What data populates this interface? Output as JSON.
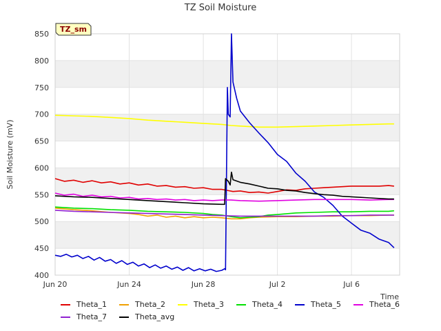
{
  "chart_data": {
    "type": "line",
    "title": "TZ Soil Moisture",
    "xlabel": "Time",
    "ylabel": "Soil Moisture (mV)",
    "site_label": "TZ_sm",
    "ylim": [
      400,
      850
    ],
    "xlim": [
      0,
      18.6
    ],
    "yticks": [
      400,
      450,
      500,
      550,
      600,
      650,
      700,
      750,
      800,
      850
    ],
    "xticks": [
      {
        "day": 0,
        "label": "Jun 20"
      },
      {
        "day": 4,
        "label": "Jun 24"
      },
      {
        "day": 8,
        "label": "Jun 28"
      },
      {
        "day": 12,
        "label": "Jul 2"
      },
      {
        "day": 16,
        "label": "Jul 6"
      }
    ],
    "series": [
      {
        "name": "Theta_1",
        "color": "#e00000",
        "points": [
          [
            0,
            580
          ],
          [
            0.5,
            575
          ],
          [
            1,
            577
          ],
          [
            1.5,
            573
          ],
          [
            2,
            576
          ],
          [
            2.5,
            572
          ],
          [
            3,
            574
          ],
          [
            3.5,
            570
          ],
          [
            4,
            572
          ],
          [
            4.5,
            568
          ],
          [
            5,
            570
          ],
          [
            5.5,
            566
          ],
          [
            6,
            567
          ],
          [
            6.5,
            564
          ],
          [
            7,
            565
          ],
          [
            7.5,
            562
          ],
          [
            8,
            563
          ],
          [
            8.5,
            560
          ],
          [
            9,
            560
          ],
          [
            9.3,
            558
          ],
          [
            9.6,
            556
          ],
          [
            10,
            557
          ],
          [
            10.5,
            554
          ],
          [
            11,
            555
          ],
          [
            11.5,
            553
          ],
          [
            12,
            556
          ],
          [
            12.5,
            559
          ],
          [
            13,
            558
          ],
          [
            13.5,
            561
          ],
          [
            14,
            562
          ],
          [
            14.5,
            563
          ],
          [
            15,
            564
          ],
          [
            15.5,
            565
          ],
          [
            16,
            566
          ],
          [
            16.5,
            566
          ],
          [
            17,
            566
          ],
          [
            17.5,
            566
          ],
          [
            18,
            567
          ],
          [
            18.3,
            566
          ]
        ]
      },
      {
        "name": "Theta_2",
        "color": "#f0a000",
        "points": [
          [
            0,
            525
          ],
          [
            1,
            522
          ],
          [
            2,
            520
          ],
          [
            3,
            517
          ],
          [
            4,
            515
          ],
          [
            4.5,
            513
          ],
          [
            5,
            510
          ],
          [
            5.5,
            512
          ],
          [
            6,
            508
          ],
          [
            6.5,
            510
          ],
          [
            7,
            507
          ],
          [
            7.5,
            509
          ],
          [
            8,
            507
          ],
          [
            8.5,
            508
          ],
          [
            9,
            507
          ],
          [
            9.5,
            505
          ],
          [
            10,
            505
          ],
          [
            10.5,
            507
          ],
          [
            11,
            508
          ],
          [
            12,
            509
          ],
          [
            13,
            509
          ],
          [
            14,
            510
          ],
          [
            15,
            510
          ],
          [
            16,
            511
          ],
          [
            17,
            511
          ],
          [
            18,
            512
          ],
          [
            18.3,
            512
          ]
        ]
      },
      {
        "name": "Theta_3",
        "color": "#ffff00",
        "points": [
          [
            0,
            698
          ],
          [
            1,
            697
          ],
          [
            2,
            696
          ],
          [
            3,
            694
          ],
          [
            4,
            692
          ],
          [
            5,
            689
          ],
          [
            6,
            687
          ],
          [
            7,
            685
          ],
          [
            8,
            683
          ],
          [
            9,
            681
          ],
          [
            9.5,
            679
          ],
          [
            10,
            678
          ],
          [
            11,
            676
          ],
          [
            12,
            676
          ],
          [
            13,
            677
          ],
          [
            14,
            678
          ],
          [
            15,
            679
          ],
          [
            16,
            680
          ],
          [
            17,
            681
          ],
          [
            18,
            682
          ],
          [
            18.3,
            682
          ]
        ]
      },
      {
        "name": "Theta_4",
        "color": "#00e000",
        "points": [
          [
            0,
            527
          ],
          [
            1,
            525
          ],
          [
            2,
            524
          ],
          [
            3,
            522
          ],
          [
            4,
            521
          ],
          [
            5,
            519
          ],
          [
            6,
            518
          ],
          [
            7,
            517
          ],
          [
            8,
            515
          ],
          [
            8.5,
            513
          ],
          [
            9,
            512
          ],
          [
            9.5,
            509
          ],
          [
            10,
            507
          ],
          [
            10.5,
            508
          ],
          [
            11,
            509
          ],
          [
            11.5,
            512
          ],
          [
            12,
            513
          ],
          [
            13,
            516
          ],
          [
            14,
            517
          ],
          [
            15,
            518
          ],
          [
            16,
            518
          ],
          [
            17,
            519
          ],
          [
            18,
            519
          ],
          [
            18.3,
            520
          ]
        ]
      },
      {
        "name": "Theta_5",
        "color": "#0000cc",
        "points": [
          [
            0,
            437
          ],
          [
            0.3,
            435
          ],
          [
            0.6,
            439
          ],
          [
            0.9,
            434
          ],
          [
            1.2,
            437
          ],
          [
            1.5,
            431
          ],
          [
            1.8,
            435
          ],
          [
            2.1,
            428
          ],
          [
            2.4,
            433
          ],
          [
            2.7,
            426
          ],
          [
            3,
            429
          ],
          [
            3.3,
            422
          ],
          [
            3.6,
            427
          ],
          [
            3.9,
            420
          ],
          [
            4.2,
            424
          ],
          [
            4.5,
            417
          ],
          [
            4.8,
            421
          ],
          [
            5.1,
            414
          ],
          [
            5.4,
            419
          ],
          [
            5.7,
            413
          ],
          [
            6,
            417
          ],
          [
            6.3,
            411
          ],
          [
            6.6,
            415
          ],
          [
            6.9,
            409
          ],
          [
            7.2,
            414
          ],
          [
            7.5,
            408
          ],
          [
            7.8,
            412
          ],
          [
            8.1,
            408
          ],
          [
            8.4,
            411
          ],
          [
            8.7,
            407
          ],
          [
            9,
            409
          ],
          [
            9.15,
            412
          ],
          [
            9.2,
            410
          ],
          [
            9.3,
            750
          ],
          [
            9.35,
            700
          ],
          [
            9.45,
            695
          ],
          [
            9.52,
            850
          ],
          [
            9.6,
            760
          ],
          [
            9.8,
            730
          ],
          [
            10,
            706
          ],
          [
            10.5,
            684
          ],
          [
            11,
            665
          ],
          [
            11.5,
            647
          ],
          [
            12,
            625
          ],
          [
            12.5,
            612
          ],
          [
            13,
            590
          ],
          [
            13.5,
            575
          ],
          [
            14,
            555
          ],
          [
            14.5,
            545
          ],
          [
            15,
            530
          ],
          [
            15.5,
            510
          ],
          [
            16,
            497
          ],
          [
            16.5,
            484
          ],
          [
            17,
            478
          ],
          [
            17.5,
            467
          ],
          [
            18,
            461
          ],
          [
            18.3,
            451
          ]
        ]
      },
      {
        "name": "Theta_6",
        "color": "#e000e0",
        "points": [
          [
            0,
            553
          ],
          [
            0.5,
            549
          ],
          [
            1,
            551
          ],
          [
            1.5,
            547
          ],
          [
            2,
            549
          ],
          [
            2.5,
            546
          ],
          [
            3,
            547
          ],
          [
            3.5,
            544
          ],
          [
            4,
            545
          ],
          [
            4.5,
            542
          ],
          [
            5,
            543
          ],
          [
            5.5,
            541
          ],
          [
            6,
            542
          ],
          [
            6.5,
            540
          ],
          [
            7,
            541
          ],
          [
            7.5,
            539
          ],
          [
            8,
            540
          ],
          [
            8.5,
            539
          ],
          [
            9,
            540
          ],
          [
            9.5,
            540
          ],
          [
            10,
            539
          ],
          [
            11,
            538
          ],
          [
            12,
            539
          ],
          [
            13,
            540
          ],
          [
            14,
            541
          ],
          [
            15,
            541
          ],
          [
            16,
            541
          ],
          [
            17,
            540
          ],
          [
            18,
            541
          ],
          [
            18.3,
            541
          ]
        ]
      },
      {
        "name": "Theta_7",
        "color": "#9020d0",
        "points": [
          [
            0,
            521
          ],
          [
            1,
            519
          ],
          [
            2,
            518
          ],
          [
            3,
            517
          ],
          [
            4,
            516
          ],
          [
            5,
            515
          ],
          [
            6,
            514
          ],
          [
            7,
            513
          ],
          [
            8,
            512
          ],
          [
            9,
            511
          ],
          [
            10,
            510
          ],
          [
            11,
            510
          ],
          [
            12,
            510
          ],
          [
            13,
            510
          ],
          [
            14,
            510
          ],
          [
            15,
            511
          ],
          [
            16,
            511
          ],
          [
            17,
            512
          ],
          [
            18,
            512
          ],
          [
            18.3,
            512
          ]
        ]
      },
      {
        "name": "Theta_avg",
        "color": "#000000",
        "points": [
          [
            0,
            548
          ],
          [
            1,
            546
          ],
          [
            2,
            545
          ],
          [
            3,
            543
          ],
          [
            4,
            541
          ],
          [
            5,
            539
          ],
          [
            6,
            537
          ],
          [
            7,
            535
          ],
          [
            8,
            533
          ],
          [
            9,
            532
          ],
          [
            9.15,
            532
          ],
          [
            9.2,
            580
          ],
          [
            9.35,
            575
          ],
          [
            9.45,
            568
          ],
          [
            9.52,
            592
          ],
          [
            9.6,
            578
          ],
          [
            10,
            573
          ],
          [
            10.5,
            570
          ],
          [
            11,
            566
          ],
          [
            11.5,
            562
          ],
          [
            12,
            561
          ],
          [
            12.5,
            558
          ],
          [
            13,
            557
          ],
          [
            13.5,
            554
          ],
          [
            14,
            552
          ],
          [
            14.5,
            550
          ],
          [
            15,
            549
          ],
          [
            15.5,
            547
          ],
          [
            16,
            546
          ],
          [
            16.5,
            545
          ],
          [
            17,
            544
          ],
          [
            17.5,
            543
          ],
          [
            18,
            542
          ],
          [
            18.3,
            542
          ]
        ]
      }
    ]
  }
}
